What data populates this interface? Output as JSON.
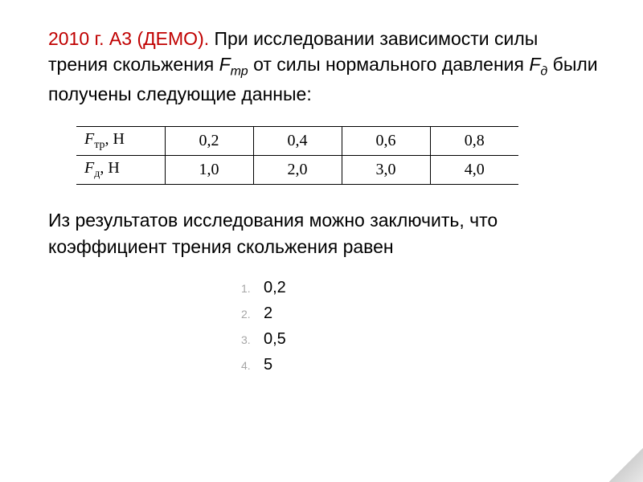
{
  "header": {
    "prefix": "2010 г. А3 (ДЕМО).",
    "body_part1": " При исследовании зависимости силы трения скольжения ",
    "var1_base": "F",
    "var1_sub": "тр",
    "body_part2": " от силы нормального давления ",
    "var2_base": "F",
    "var2_sub": "д",
    "body_part3": " были получены следующие данные:"
  },
  "table": {
    "row1_label_base": "F",
    "row1_label_sub": "тр",
    "row1_unit": ", Н",
    "row1": [
      "0,2",
      "0,4",
      "0,6",
      "0,8"
    ],
    "row2_label_base": "F",
    "row2_label_sub": "д",
    "row2_unit": ", Н",
    "row2": [
      "1,0",
      "2,0",
      "3,0",
      "4,0"
    ]
  },
  "conclusion": "Из результатов исследования можно заключить, что коэффициент трения скольжения равен",
  "options": [
    "0,2",
    "2",
    "0,5",
    "5"
  ],
  "colors": {
    "red": "#c00000",
    "black": "#000000",
    "gray": "#a6a6a6",
    "background": "#ffffff"
  }
}
